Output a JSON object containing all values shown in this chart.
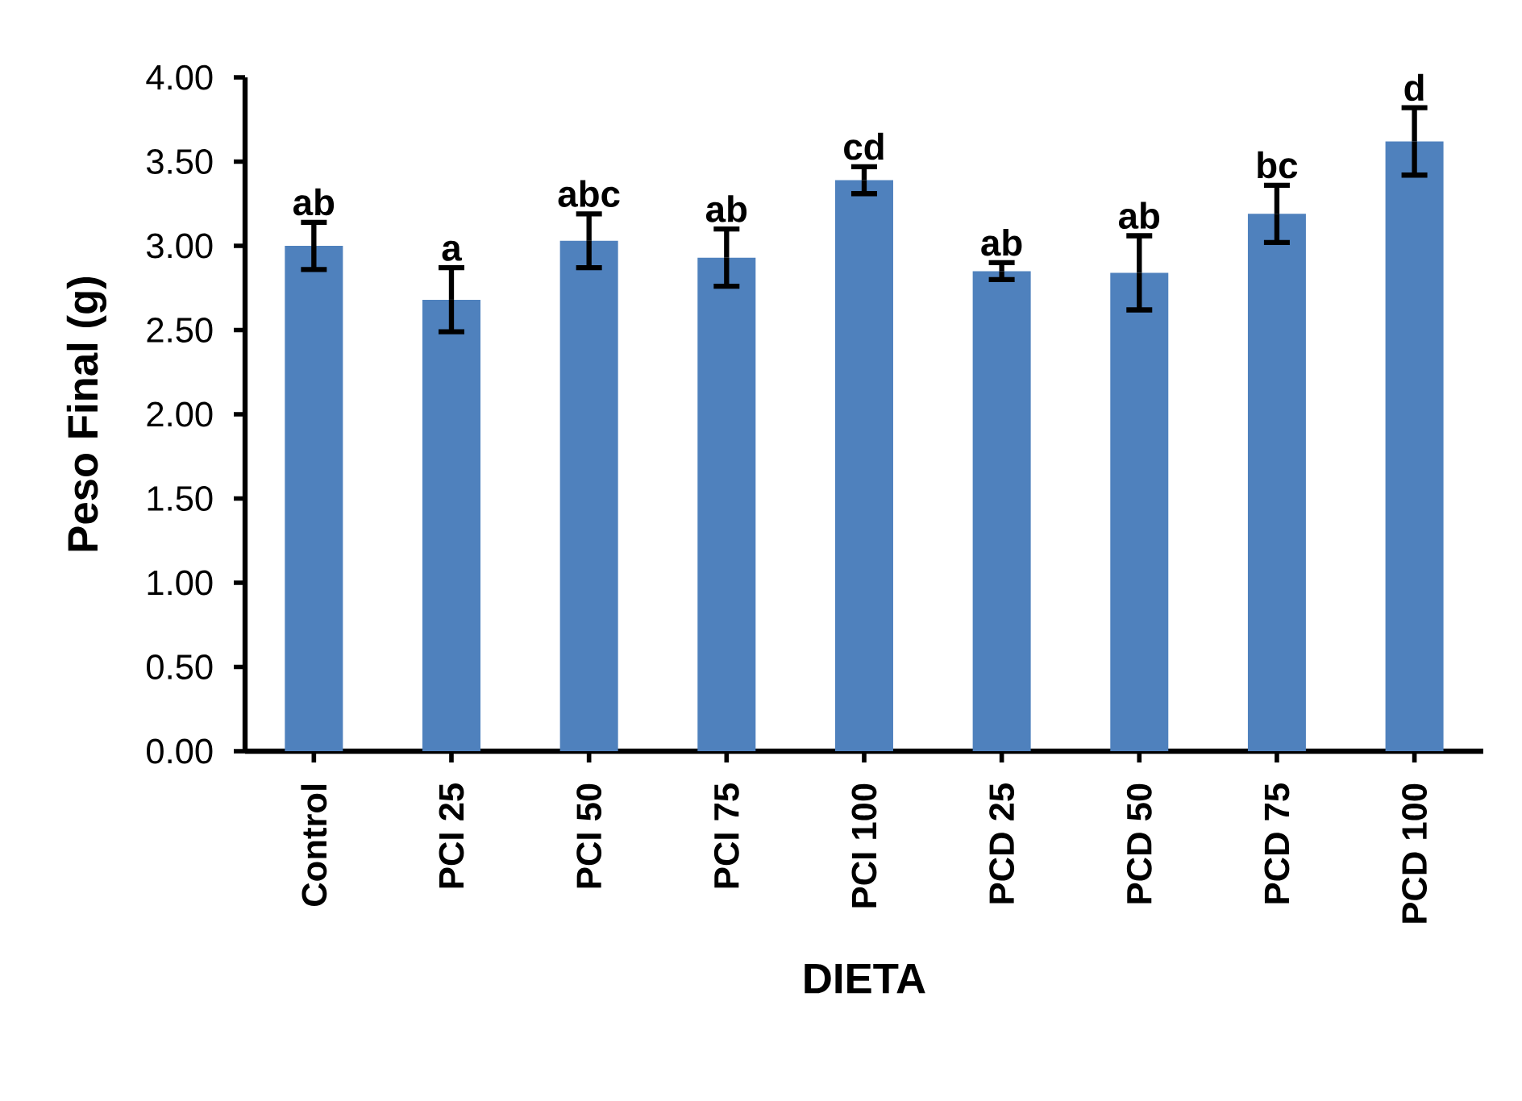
{
  "chart_data": {
    "type": "bar",
    "xlabel": "DIETA",
    "ylabel": "Peso Final (g)",
    "categories": [
      "Control",
      "PCI 25",
      "PCI 50",
      "PCI 75",
      "PCI 100",
      "PCD 25",
      "PCD 50",
      "PCD 75",
      "PCD 100"
    ],
    "values": [
      3.0,
      2.68,
      3.03,
      2.93,
      3.39,
      2.85,
      2.84,
      3.19,
      3.62
    ],
    "errors": [
      0.14,
      0.19,
      0.16,
      0.17,
      0.08,
      0.05,
      0.22,
      0.17,
      0.2
    ],
    "color": "#4f81bd",
    "ylim": [
      0,
      4
    ],
    "yticks": [
      {
        "value": 0,
        "label": "0.00"
      },
      {
        "value": 0.5,
        "label": "0.50"
      },
      {
        "value": 1,
        "label": "1.00"
      },
      {
        "value": 1.5,
        "label": "1.50"
      },
      {
        "value": 2,
        "label": "2.00"
      },
      {
        "value": 2.5,
        "label": "2.50"
      },
      {
        "value": 3,
        "label": "3.00"
      },
      {
        "value": 3.5,
        "label": "3.50"
      },
      {
        "value": 4,
        "label": "4.00"
      }
    ],
    "annotations": [
      {
        "text": "ab",
        "x": "Control",
        "y": 3.14
      },
      {
        "text": "a",
        "x": "PCI 25",
        "y": 2.87
      },
      {
        "text": "abc",
        "x": "PCI 50",
        "y": 3.19
      },
      {
        "text": "ab",
        "x": "PCI 75",
        "y": 3.1
      },
      {
        "text": "cd",
        "x": "PCI 100",
        "y": 3.47
      },
      {
        "text": "ab",
        "x": "PCD 25",
        "y": 2.9
      },
      {
        "text": "ab",
        "x": "PCD 50",
        "y": 3.06
      },
      {
        "text": "bc",
        "x": "PCD 75",
        "y": 3.36
      },
      {
        "text": "d",
        "x": "PCD 100",
        "y": 3.82
      }
    ]
  }
}
